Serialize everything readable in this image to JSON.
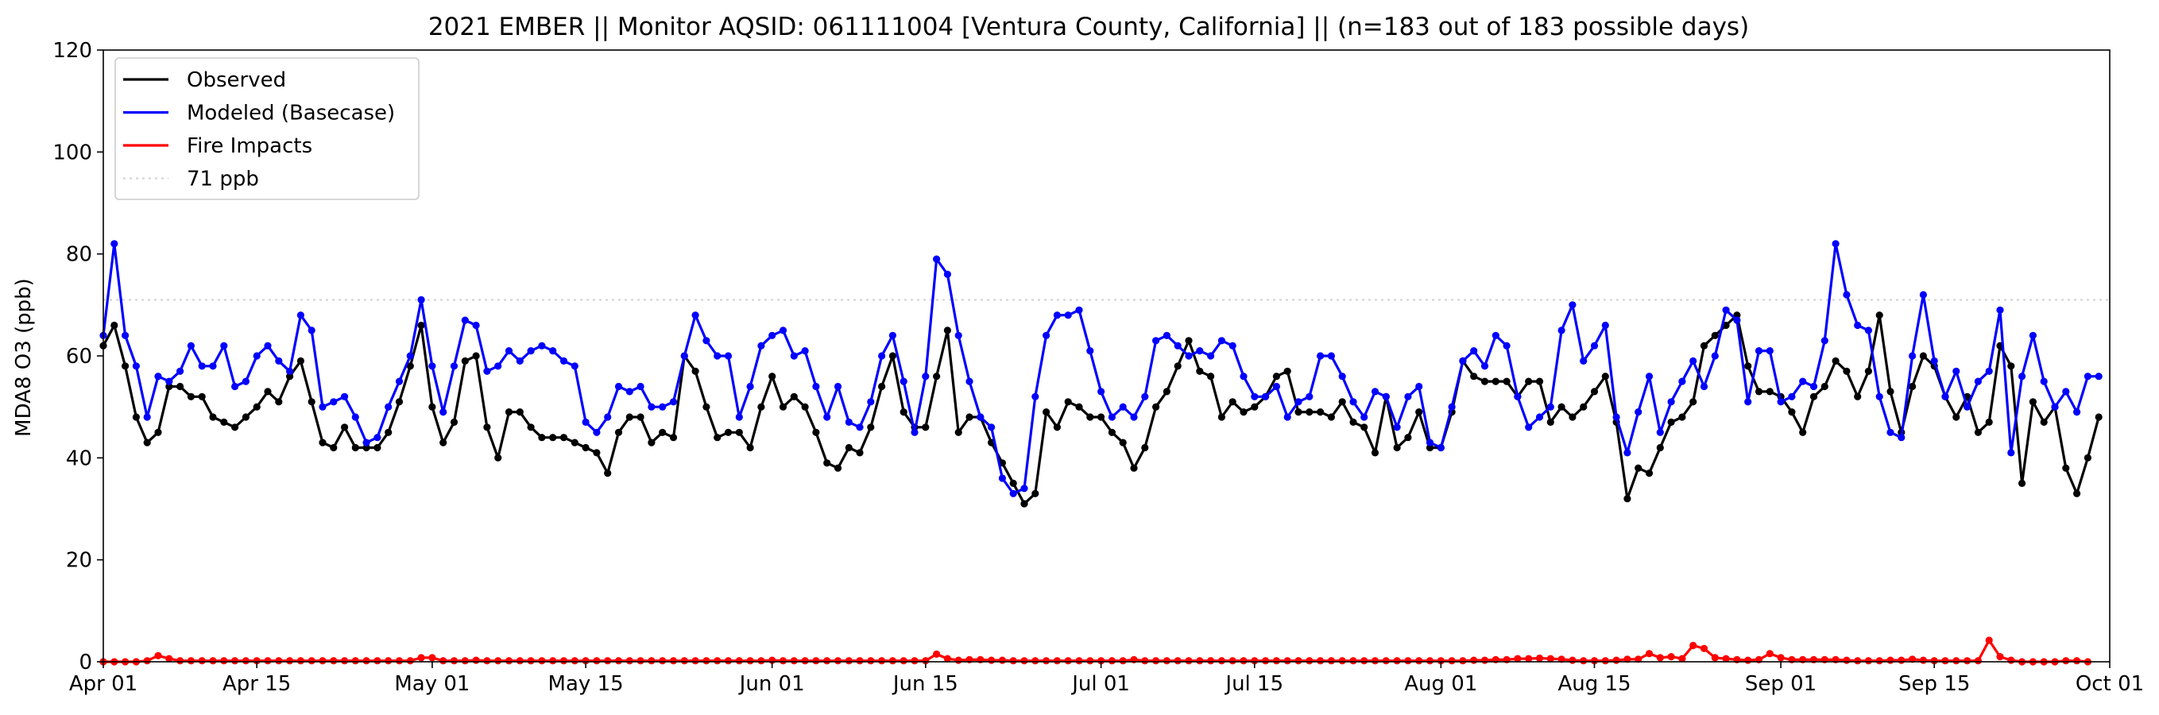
{
  "chart_data": {
    "type": "line",
    "title": "2021 EMBER || Monitor AQSID: 061111004 [Ventura County, California] || (n=183 out of 183 possible days)",
    "xlabel": "",
    "ylabel": "MDA8 O3 (ppb)",
    "ylim": [
      0,
      120
    ],
    "yticks": [
      "0",
      "20",
      "40",
      "60",
      "80",
      "100",
      "120"
    ],
    "xlim": [
      "2021-04-01",
      "2021-10-01"
    ],
    "xticks": [
      {
        "date": "2021-04-01",
        "label": "Apr 01"
      },
      {
        "date": "2021-04-15",
        "label": "Apr 15"
      },
      {
        "date": "2021-05-01",
        "label": "May 01"
      },
      {
        "date": "2021-05-15",
        "label": "May 15"
      },
      {
        "date": "2021-06-01",
        "label": "Jun 01"
      },
      {
        "date": "2021-06-15",
        "label": "Jun 15"
      },
      {
        "date": "2021-07-01",
        "label": "Jul 01"
      },
      {
        "date": "2021-07-15",
        "label": "Jul 15"
      },
      {
        "date": "2021-08-01",
        "label": "Aug 01"
      },
      {
        "date": "2021-08-15",
        "label": "Aug 15"
      },
      {
        "date": "2021-09-01",
        "label": "Sep 01"
      },
      {
        "date": "2021-09-15",
        "label": "Sep 15"
      },
      {
        "date": "2021-10-01",
        "label": "Oct 01"
      }
    ],
    "grid": false,
    "legend_position": "top-left",
    "reference_line": {
      "name": "71 ppb",
      "value": 71,
      "color": "#d3d3d3"
    },
    "x_start": "2021-04-01",
    "series": [
      {
        "name": "Observed",
        "color": "#000000",
        "values": [
          62,
          66,
          58,
          48,
          43,
          45,
          54,
          54,
          52,
          52,
          48,
          47,
          46,
          48,
          50,
          53,
          51,
          56,
          59,
          51,
          43,
          42,
          46,
          42,
          42,
          42,
          45,
          51,
          58,
          66,
          50,
          43,
          47,
          59,
          60,
          46,
          40,
          49,
          49,
          46,
          44,
          44,
          44,
          43,
          42,
          41,
          37,
          45,
          48,
          48,
          43,
          45,
          44,
          60,
          57,
          50,
          44,
          45,
          45,
          42,
          50,
          56,
          50,
          52,
          50,
          45,
          39,
          38,
          42,
          41,
          46,
          54,
          60,
          49,
          46,
          46,
          56,
          65,
          45,
          48,
          48,
          43,
          39,
          35,
          31,
          33,
          49,
          46,
          51,
          50,
          48,
          48,
          45,
          43,
          38,
          42,
          50,
          53,
          58,
          63,
          57,
          56,
          48,
          51,
          49,
          50,
          52,
          56,
          57,
          49,
          49,
          49,
          48,
          51,
          47,
          46,
          41,
          52,
          42,
          44,
          49,
          42,
          42,
          49,
          59,
          56,
          55,
          55,
          55,
          52,
          55,
          55,
          47,
          50,
          48,
          50,
          53,
          56,
          47,
          32,
          38,
          37,
          42,
          47,
          48,
          51,
          62,
          64,
          66,
          68,
          58,
          53,
          53,
          52,
          49,
          45,
          52,
          54,
          59,
          57,
          52,
          57,
          68,
          53,
          45,
          54,
          60,
          58,
          52,
          48,
          52,
          45,
          47,
          62,
          58,
          35,
          51,
          47,
          50,
          38,
          33,
          40,
          48
        ]
      },
      {
        "name": "Modeled (Basecase)",
        "color": "#0000ff",
        "values": [
          64,
          82,
          64,
          58,
          48,
          56,
          55,
          57,
          62,
          58,
          58,
          62,
          54,
          55,
          60,
          62,
          59,
          57,
          68,
          65,
          50,
          51,
          52,
          48,
          43,
          44,
          50,
          55,
          60,
          71,
          58,
          49,
          58,
          67,
          66,
          57,
          58,
          61,
          59,
          61,
          62,
          61,
          59,
          58,
          47,
          45,
          48,
          54,
          53,
          54,
          50,
          50,
          51,
          60,
          68,
          63,
          60,
          60,
          48,
          54,
          62,
          64,
          65,
          60,
          61,
          54,
          48,
          54,
          47,
          46,
          51,
          60,
          64,
          55,
          45,
          56,
          79,
          76,
          64,
          55,
          48,
          46,
          36,
          33,
          34,
          52,
          64,
          68,
          68,
          69,
          61,
          53,
          48,
          50,
          48,
          52,
          63,
          64,
          62,
          60,
          61,
          60,
          63,
          62,
          56,
          52,
          52,
          54,
          48,
          51,
          52,
          60,
          60,
          56,
          51,
          48,
          53,
          52,
          46,
          52,
          54,
          43,
          42,
          50,
          59,
          61,
          58,
          64,
          62,
          52,
          46,
          48,
          50,
          65,
          70,
          59,
          62,
          66,
          48,
          41,
          49,
          56,
          45,
          51,
          55,
          59,
          54,
          60,
          69,
          67,
          51,
          61,
          61,
          51,
          52,
          55,
          54,
          63,
          82,
          72,
          66,
          65,
          52,
          45,
          44,
          60,
          72,
          59,
          52,
          57,
          50,
          55,
          57,
          69,
          41,
          56,
          64,
          55,
          50,
          53,
          49,
          56,
          56
        ]
      },
      {
        "name": "Fire Impacts",
        "color": "#ff0000",
        "values": [
          0,
          0,
          0,
          0,
          0.2,
          1.2,
          0.6,
          0.2,
          0.2,
          0.2,
          0.2,
          0.2,
          0.2,
          0.2,
          0.2,
          0.2,
          0.2,
          0.2,
          0.2,
          0.2,
          0.2,
          0.2,
          0.2,
          0.2,
          0.2,
          0.2,
          0.2,
          0.2,
          0.2,
          0.8,
          0.8,
          0.2,
          0.2,
          0.2,
          0.3,
          0.2,
          0.2,
          0.2,
          0.2,
          0.2,
          0.2,
          0.2,
          0.2,
          0.2,
          0.2,
          0.2,
          0.2,
          0.2,
          0.2,
          0.2,
          0.2,
          0.2,
          0.2,
          0.2,
          0.2,
          0.2,
          0.2,
          0.2,
          0.2,
          0.2,
          0.2,
          0.3,
          0.2,
          0.2,
          0.2,
          0.2,
          0.2,
          0.2,
          0.2,
          0.2,
          0.2,
          0.2,
          0.2,
          0.2,
          0.2,
          0.2,
          1.5,
          0.6,
          0.3,
          0.4,
          0.4,
          0.3,
          0.3,
          0.2,
          0.2,
          0.2,
          0.2,
          0.2,
          0.2,
          0.2,
          0.2,
          0.2,
          0.2,
          0.2,
          0.4,
          0.2,
          0.2,
          0.2,
          0.2,
          0.2,
          0.2,
          0.2,
          0.2,
          0.2,
          0.2,
          0.2,
          0.2,
          0.2,
          0.2,
          0.2,
          0.2,
          0.2,
          0.2,
          0.2,
          0.2,
          0.2,
          0.2,
          0.2,
          0.2,
          0.2,
          0.2,
          0.2,
          0.2,
          0.2,
          0.2,
          0.3,
          0.3,
          0.4,
          0.4,
          0.6,
          0.6,
          0.7,
          0.6,
          0.5,
          0.3,
          0.2,
          0.2,
          0.2,
          0.3,
          0.5,
          0.5,
          1.6,
          0.8,
          1.0,
          0.6,
          3.2,
          2.6,
          0.8,
          0.6,
          0.4,
          0.3,
          0.4,
          1.6,
          0.8,
          0.4,
          0.4,
          0.4,
          0.4,
          0.4,
          0.3,
          0.2,
          0.2,
          0.2,
          0.3,
          0.3,
          0.5,
          0.3,
          0.2,
          0.2,
          0.2,
          0.2,
          0.2,
          4.2,
          1.0,
          0.3,
          0,
          0,
          0,
          0,
          0.2,
          0.2,
          0
        ]
      }
    ]
  }
}
